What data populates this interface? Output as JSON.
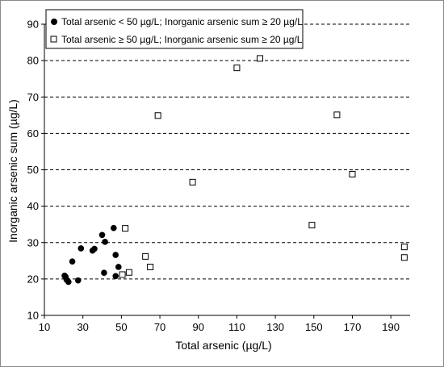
{
  "chart_data": {
    "type": "scatter",
    "xlabel": "Total arsenic (µg/L)",
    "ylabel": "Inorganic arsenic sum (µg/L)",
    "xlim": [
      10,
      200
    ],
    "ylim": [
      10,
      90
    ],
    "xticks": [
      10,
      30,
      50,
      70,
      90,
      110,
      130,
      150,
      170,
      190
    ],
    "yticks": [
      10,
      20,
      30,
      40,
      50,
      60,
      70,
      80,
      90
    ],
    "grid": "horizontal dashed",
    "legend_position": "top-left",
    "series": [
      {
        "name": "Total arsenic < 50 µg/L; Inorganic arsenic sum ≥ 20 µg/L",
        "marker": "filled-circle",
        "color": "#000000",
        "points": [
          [
            20.5,
            20.9
          ],
          [
            21.0,
            20.6
          ],
          [
            21.5,
            19.8
          ],
          [
            22.5,
            19.2
          ],
          [
            24.5,
            24.8
          ],
          [
            27.5,
            19.6
          ],
          [
            29.0,
            28.4
          ],
          [
            35.0,
            27.8
          ],
          [
            36.0,
            28.3
          ],
          [
            40.0,
            32.1
          ],
          [
            41.5,
            30.2
          ],
          [
            41.0,
            21.7
          ],
          [
            46.0,
            34.0
          ],
          [
            47.0,
            26.6
          ],
          [
            47.0,
            20.8
          ],
          [
            48.5,
            23.3
          ]
        ]
      },
      {
        "name": "Total arsenic ≥ 50 µg/L; Inorganic arsenic sum ≥ 20 µg/L",
        "marker": "open-square",
        "color": "#000000",
        "points": [
          [
            50.5,
            21.2
          ],
          [
            52.0,
            33.9
          ],
          [
            54.0,
            21.8
          ],
          [
            62.5,
            26.2
          ],
          [
            65.0,
            23.3
          ],
          [
            69.0,
            64.9
          ],
          [
            87.0,
            46.6
          ],
          [
            110.0,
            78.0
          ],
          [
            122.0,
            80.6
          ],
          [
            149.0,
            34.8
          ],
          [
            162.0,
            65.1
          ],
          [
            170.0,
            48.8
          ],
          [
            197.0,
            28.8
          ],
          [
            197.0,
            25.9
          ]
        ]
      }
    ]
  }
}
